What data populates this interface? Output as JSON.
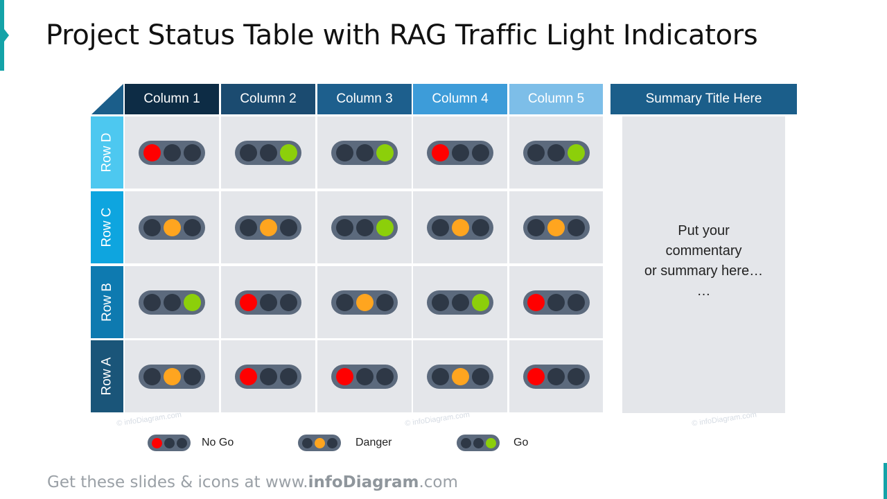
{
  "title": "Project Status Table with RAG Traffic Light Indicators",
  "columns": [
    {
      "label": "Column 1",
      "color": "#0d2c45"
    },
    {
      "label": "Column 2",
      "color": "#1b4b70"
    },
    {
      "label": "Column 3",
      "color": "#1d5f8d"
    },
    {
      "label": "Column 4",
      "color": "#3d9cd9"
    },
    {
      "label": "Column 5",
      "color": "#7dbee8"
    }
  ],
  "rows": [
    {
      "label": "Row D",
      "color": "#4dc8f0",
      "status": [
        "red",
        "green",
        "green",
        "red",
        "green"
      ]
    },
    {
      "label": "Row C",
      "color": "#0ea5df",
      "status": [
        "amber",
        "amber",
        "green",
        "amber",
        "amber"
      ]
    },
    {
      "label": "Row B",
      "color": "#0e7ab0",
      "status": [
        "green",
        "red",
        "amber",
        "green",
        "red"
      ]
    },
    {
      "label": "Row A",
      "color": "#1a5579",
      "status": [
        "amber",
        "red",
        "red",
        "amber",
        "red"
      ]
    }
  ],
  "summary": {
    "title": "Summary Title Here",
    "text": "Put your\ncommentary\nor summary here…\n…"
  },
  "legend": [
    {
      "label": "No Go",
      "status": "red"
    },
    {
      "label": "Danger",
      "status": "amber"
    },
    {
      "label": "Go",
      "status": "green"
    }
  ],
  "status_colors": {
    "red": "#ff0000",
    "amber": "#ffa51f",
    "green": "#8ccf0a",
    "off": "#2e3846"
  },
  "watermark": "© infoDiagram.com",
  "footer": {
    "prefix": "Get these slides & icons at www.",
    "brand": "infoDiagram",
    "suffix": ".com"
  }
}
